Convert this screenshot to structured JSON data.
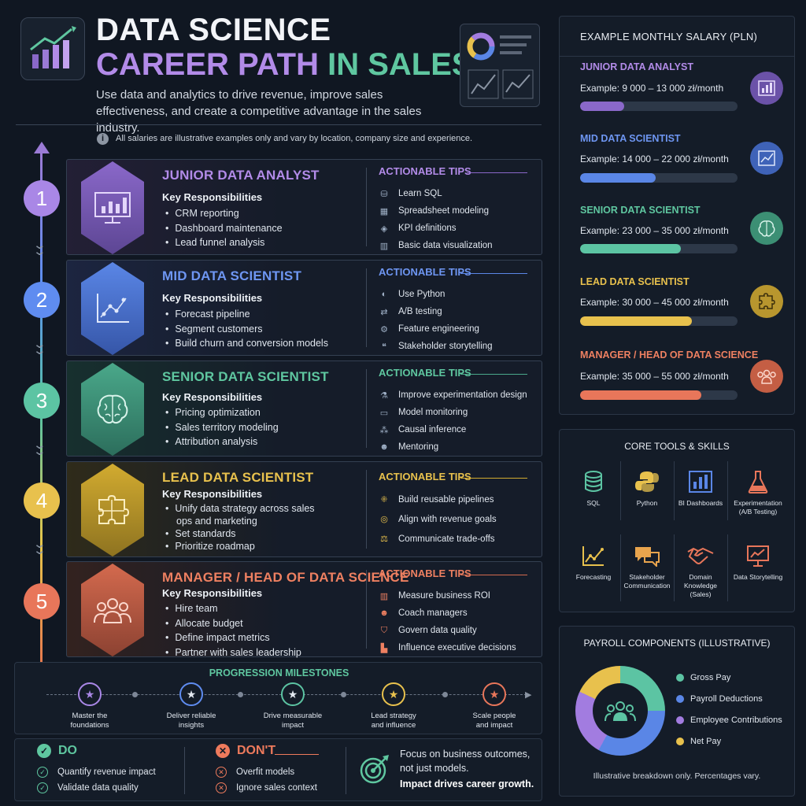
{
  "header": {
    "title_line1": "DATA SCIENCE",
    "title_line2a": "CAREER PATH",
    "title_line2b": "IN SALES",
    "subtitle": "Use data and analytics to drive revenue, improve sales effectiveness, and create a competitive advantage in the sales industry.",
    "note": "All salaries are illustrative examples only and vary by location, company size and experience."
  },
  "stages": [
    {
      "num": "1",
      "title": "JUNIOR DATA ANALYST",
      "kr": "Key Responsibilities",
      "resp": [
        "CRM reporting",
        "Dashboard maintenance",
        "Lead funnel analysis"
      ],
      "tips_h": "ACTIONABLE TIPS",
      "tips": [
        "Learn SQL",
        "Spreadsheet modeling",
        "KPI definitions",
        "Basic data visualization"
      ],
      "color": "#a987e6"
    },
    {
      "num": "2",
      "title": "MID DATA SCIENTIST",
      "kr": "Key Responsibilities",
      "resp": [
        "Forecast pipeline",
        "Segment customers",
        "Build churn and conversion models"
      ],
      "tips_h": "ACTIONABLE TIPS",
      "tips": [
        "Use Python",
        "A/B testing",
        "Feature engineering",
        "Stakeholder storytelling"
      ],
      "color": "#5f8cf0"
    },
    {
      "num": "3",
      "title": "SENIOR DATA SCIENTIST",
      "kr": "Key Responsibilities",
      "resp": [
        "Pricing optimization",
        "Sales territory modeling",
        "Attribution analysis"
      ],
      "tips_h": "ACTIONABLE TIPS",
      "tips": [
        "Improve experimentation design",
        "Model monitoring",
        "Causal inference",
        "Mentoring"
      ],
      "color": "#5cc4a3"
    },
    {
      "num": "4",
      "title": "LEAD DATA SCIENTIST",
      "kr": "Key Responsibilities",
      "resp": [
        "Unify data strategy across sales ops and marketing",
        "Set standards",
        "Prioritize roadmap"
      ],
      "tips_h": "ACTIONABLE TIPS",
      "tips": [
        "Build reusable pipelines",
        "Align with revenue goals",
        "Communicate trade-offs"
      ],
      "color": "#e8c14d"
    },
    {
      "num": "5",
      "title": "MANAGER / HEAD OF DATA SCIENCE",
      "kr": "Key Responsibilities",
      "resp": [
        "Hire team",
        "Allocate budget",
        "Define impact metrics",
        "Partner with sales leadership"
      ],
      "tips_h": "ACTIONABLE TIPS",
      "tips": [
        "Measure business ROI",
        "Coach managers",
        "Govern data quality",
        "Influence executive decisions"
      ],
      "color": "#e8765a"
    }
  ],
  "milestones": {
    "title": "PROGRESSION MILESTONES",
    "items": [
      {
        "line1": "Master the",
        "line2": "foundations"
      },
      {
        "line1": "Deliver reliable",
        "line2": "insights"
      },
      {
        "line1": "Drive measurable",
        "line2": "impact"
      },
      {
        "line1": "Lead strategy",
        "line2": "and influence"
      },
      {
        "line1": "Scale people",
        "line2": "and impact"
      }
    ]
  },
  "do": {
    "title": "DO",
    "items": [
      "Quantify revenue impact",
      "Validate data quality"
    ]
  },
  "dont": {
    "title": "DON'T",
    "items": [
      "Overfit models",
      "Ignore sales context"
    ]
  },
  "focus": {
    "text": "Focus on business outcomes, not just models.",
    "bold": "Impact drives career growth."
  },
  "salary": {
    "title": "EXAMPLE MONTHLY SALARY (PLN)",
    "items": [
      {
        "title": "JUNIOR DATA ANALYST",
        "value": "Example: 9 000 – 13 000 zł/month",
        "level": 0.28,
        "color": "#8a68c9"
      },
      {
        "title": "MID DATA SCIENTIST",
        "value": "Example: 14 000 – 22 000 zł/month",
        "level": 0.48,
        "color": "#5a86e6"
      },
      {
        "title": "SENIOR DATA SCIENTIST",
        "value": "Example: 23 000 – 35 000 zł/month",
        "level": 0.64,
        "color": "#5cc4a3"
      },
      {
        "title": "LEAD DATA SCIENTIST",
        "value": "Example: 30 000 – 45 000 zł/month",
        "level": 0.71,
        "color": "#e8c14d"
      },
      {
        "title": "MANAGER / HEAD OF DATA SCIENCE",
        "value": "Example: 35 000 – 55 000 zł/month",
        "level": 0.77,
        "color": "#e8765a"
      }
    ]
  },
  "tools": {
    "title": "CORE TOOLS & SKILLS",
    "items": [
      {
        "label": "SQL",
        "icon": "database-icon"
      },
      {
        "label": "Python",
        "icon": "python-icon"
      },
      {
        "label": "BI Dashboards",
        "icon": "bar-chart-icon"
      },
      {
        "label": "Experimentation (A/B Testing)",
        "icon": "flask-icon"
      },
      {
        "label": "Forecasting",
        "icon": "trend-chart-icon"
      },
      {
        "label": "Stakeholder Communication",
        "icon": "speech-bubbles-icon"
      },
      {
        "label": "Domain Knowledge (Sales)",
        "icon": "handshake-icon"
      },
      {
        "label": "Data Storytelling",
        "icon": "presentation-icon"
      }
    ]
  },
  "payroll": {
    "title": "PAYROLL COMPONENTS (ILLUSTRATIVE)",
    "legend": [
      {
        "label": "Gross Pay",
        "color": "#5cc4a3"
      },
      {
        "label": "Payroll Deductions",
        "color": "#5a86e6"
      },
      {
        "label": "Employee Contributions",
        "color": "#a27ce0"
      },
      {
        "label": "Net Pay",
        "color": "#e8c14d"
      }
    ],
    "note": "Illustrative breakdown only. Percentages vary."
  }
}
